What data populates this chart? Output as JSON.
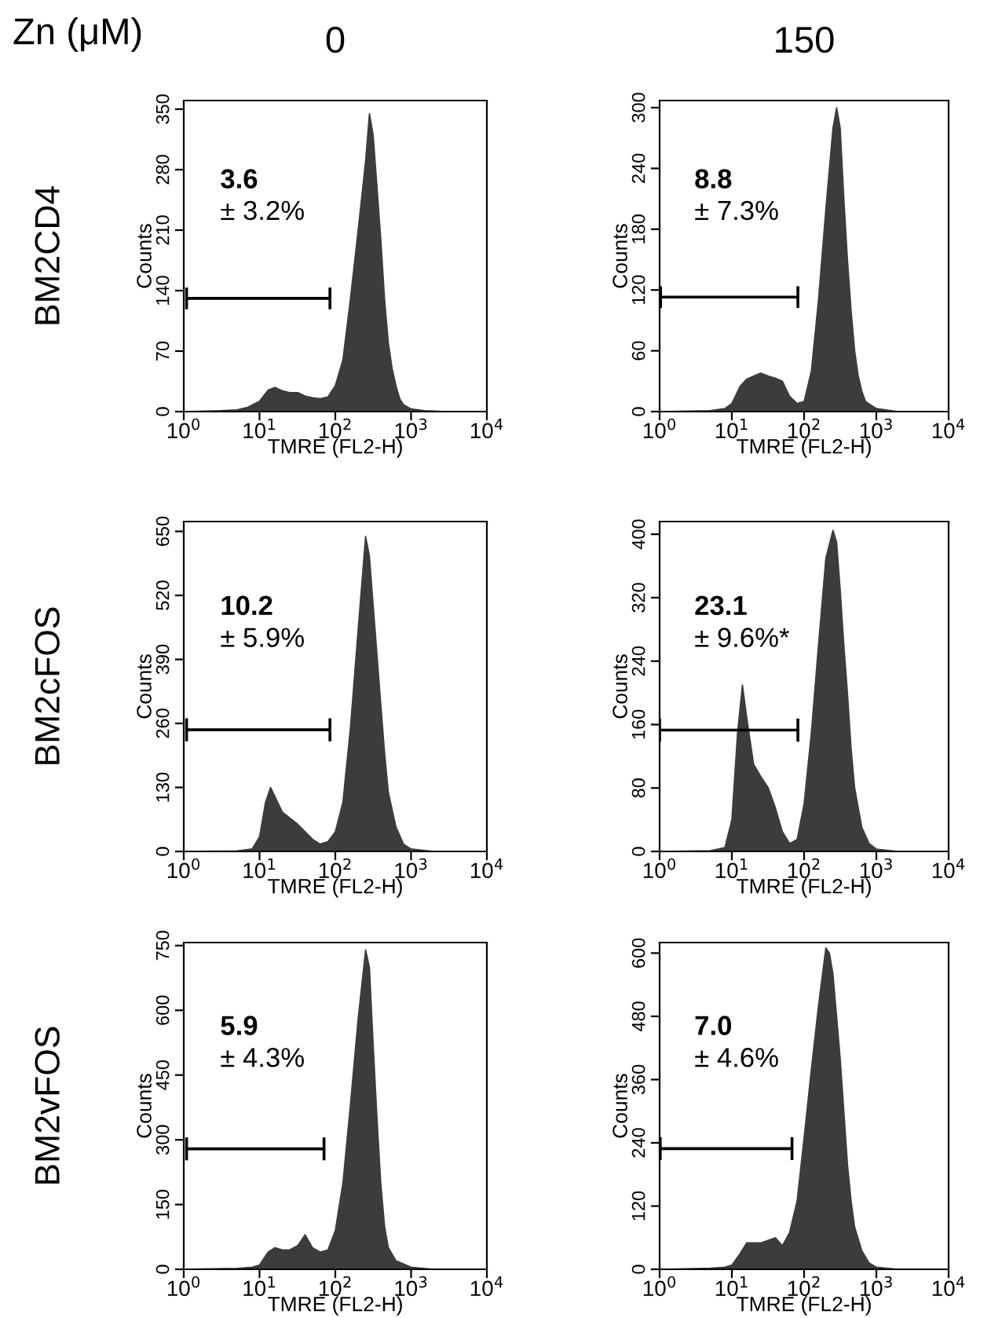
{
  "chart_data": [
    {
      "type": "area",
      "title": "0",
      "xlabel": "TMRE (FL2-H)",
      "ylabel": "Counts",
      "log": "x",
      "xlim": [
        1,
        10000
      ],
      "ylim": [
        0,
        360
      ],
      "yticks": [
        0,
        70,
        140,
        210,
        280,
        350
      ],
      "xticks": [
        {
          "value": 1,
          "label": "10$^{0}$"
        },
        {
          "value": 10,
          "label": "10$^{1}$"
        },
        {
          "value": 100,
          "label": "10$^{2}$"
        },
        {
          "value": 1000,
          "label": "10$^{3}$"
        },
        {
          "value": 10000,
          "label": "10$^{4}$"
        }
      ],
      "annotations": [
        "3.6",
        "± 3.2%",
        "BM2CD4",
        "Zn (μM)"
      ],
      "grid": false,
      "legend": false,
      "series": [
        {
          "color": "#3c3c3c",
          "x": [
            1,
            3,
            5,
            7,
            10,
            13,
            16,
            20,
            25,
            32,
            40,
            50,
            63,
            80,
            100,
            126,
            158,
            200,
            251,
            282,
            316,
            355,
            398,
            447,
            501,
            562,
            631,
            708,
            794,
            1000,
            1500,
            3000,
            10000
          ],
          "values": [
            0,
            1,
            2,
            5,
            12,
            25,
            28,
            24,
            22,
            22,
            18,
            16,
            15,
            17,
            30,
            60,
            130,
            210,
            290,
            345,
            320,
            260,
            200,
            130,
            80,
            50,
            30,
            15,
            8,
            3,
            1,
            0,
            0
          ]
        },
        {
          "type": "line",
          "color": "#000000",
          "x": [
            1.09,
            85
          ],
          "values": [
            131,
            131
          ]
        }
      ]
    },
    {
      "type": "area",
      "title": "150",
      "xlabel": "TMRE (FL2-H)",
      "ylabel": "Counts",
      "log": "x",
      "xlim": [
        1,
        10000
      ],
      "ylim": [
        0,
        307
      ],
      "yticks": [
        0,
        60,
        120,
        180,
        240,
        300
      ],
      "xticks": [
        {
          "value": 1,
          "label": "10$^{0}$"
        },
        {
          "value": 10,
          "label": "10$^{1}$"
        },
        {
          "value": 100,
          "label": "10$^{2}$"
        },
        {
          "value": 1000,
          "label": "10$^{3}$"
        },
        {
          "value": 10000,
          "label": "10$^{4}$"
        }
      ],
      "annotations": [
        "8.8",
        "± 7.3%"
      ],
      "grid": false,
      "legend": false,
      "series": [
        {
          "color": "#3c3c3c",
          "x": [
            1,
            5,
            8,
            10,
            13,
            16,
            20,
            25,
            32,
            40,
            50,
            63,
            80,
            100,
            126,
            158,
            200,
            251,
            282,
            316,
            355,
            398,
            447,
            501,
            562,
            631,
            708,
            1000,
            2000,
            10000
          ],
          "values": [
            0,
            1,
            3,
            8,
            25,
            32,
            35,
            38,
            35,
            33,
            30,
            15,
            8,
            10,
            40,
            110,
            200,
            280,
            300,
            280,
            210,
            150,
            100,
            60,
            35,
            20,
            10,
            3,
            0,
            0
          ]
        },
        {
          "type": "line",
          "color": "#000000",
          "x": [
            1.03,
            82
          ],
          "values": [
            113,
            113
          ]
        }
      ]
    },
    {
      "type": "area",
      "xlabel": "TMRE (FL2-H)",
      "ylabel": "Counts",
      "log": "x",
      "xlim": [
        1,
        10000
      ],
      "ylim": [
        0,
        670
      ],
      "yticks": [
        0,
        130,
        260,
        390,
        520,
        650
      ],
      "xticks": [
        {
          "value": 1,
          "label": "10$^{0}$"
        },
        {
          "value": 10,
          "label": "10$^{1}$"
        },
        {
          "value": 100,
          "label": "10$^{2}$"
        },
        {
          "value": 1000,
          "label": "10$^{3}$"
        },
        {
          "value": 10000,
          "label": "10$^{4}$"
        }
      ],
      "annotations": [
        "10.2",
        "± 5.9%",
        "BM2cFOS"
      ],
      "grid": false,
      "legend": false,
      "series": [
        {
          "color": "#3c3c3c",
          "x": [
            1,
            5,
            8,
            10,
            12,
            14,
            20,
            32,
            50,
            63,
            80,
            100,
            126,
            158,
            200,
            251,
            282,
            316,
            355,
            398,
            447,
            501,
            631,
            794,
            1000,
            2000,
            10000
          ],
          "values": [
            0,
            1,
            5,
            30,
            100,
            130,
            80,
            55,
            25,
            15,
            20,
            40,
            100,
            250,
            450,
            640,
            600,
            500,
            400,
            300,
            200,
            120,
            50,
            15,
            5,
            0,
            0
          ]
        },
        {
          "type": "line",
          "color": "#000000",
          "x": [
            1.09,
            85
          ],
          "values": [
            247,
            247
          ]
        }
      ]
    },
    {
      "type": "area",
      "xlabel": "TMRE (FL2-H)",
      "ylabel": "Counts",
      "log": "x",
      "xlim": [
        1,
        10000
      ],
      "ylim": [
        0,
        416
      ],
      "yticks": [
        0,
        80,
        160,
        240,
        320,
        400
      ],
      "xticks": [
        {
          "value": 1,
          "label": "10$^{0}$"
        },
        {
          "value": 10,
          "label": "10$^{1}$"
        },
        {
          "value": 100,
          "label": "10$^{2}$"
        },
        {
          "value": 1000,
          "label": "10$^{3}$"
        },
        {
          "value": 10000,
          "label": "10$^{4}$"
        }
      ],
      "annotations": [
        "23.1",
        "± 9.6%*"
      ],
      "grid": false,
      "legend": false,
      "series": [
        {
          "color": "#3c3c3c",
          "x": [
            1,
            5,
            8,
            10,
            12,
            14,
            16,
            20,
            25,
            32,
            40,
            50,
            63,
            80,
            100,
            126,
            158,
            200,
            251,
            282,
            316,
            355,
            398,
            447,
            501,
            631,
            794,
            1000,
            2000,
            10000
          ],
          "values": [
            0,
            1,
            5,
            40,
            150,
            210,
            170,
            110,
            95,
            80,
            55,
            25,
            10,
            15,
            60,
            150,
            260,
            370,
            405,
            390,
            330,
            260,
            200,
            130,
            80,
            30,
            10,
            3,
            0,
            0
          ]
        },
        {
          "type": "line",
          "color": "#000000",
          "x": [
            1.0,
            82
          ],
          "values": [
            153,
            153
          ]
        }
      ]
    },
    {
      "type": "area",
      "xlabel": "TMRE (FL2-H)",
      "ylabel": "Counts",
      "log": "x",
      "xlim": [
        1,
        10000
      ],
      "ylim": [
        0,
        757
      ],
      "yticks": [
        0,
        150,
        300,
        450,
        600,
        750
      ],
      "xticks": [
        {
          "value": 1,
          "label": "10$^{0}$"
        },
        {
          "value": 10,
          "label": "10$^{1}$"
        },
        {
          "value": 100,
          "label": "10$^{2}$"
        },
        {
          "value": 1000,
          "label": "10$^{3}$"
        },
        {
          "value": 10000,
          "label": "10$^{4}$"
        }
      ],
      "annotations": [
        "5.9",
        "± 4.3%",
        "BM2vFOS"
      ],
      "grid": false,
      "legend": false,
      "series": [
        {
          "color": "#3c3c3c",
          "x": [
            1,
            5,
            8,
            10,
            13,
            16,
            20,
            25,
            32,
            40,
            50,
            63,
            80,
            100,
            126,
            158,
            200,
            251,
            282,
            316,
            355,
            398,
            447,
            501,
            631,
            1000,
            2000,
            10000
          ],
          "values": [
            0,
            2,
            5,
            10,
            40,
            50,
            45,
            45,
            55,
            80,
            50,
            40,
            45,
            90,
            200,
            380,
            580,
            740,
            700,
            520,
            350,
            200,
            100,
            50,
            20,
            5,
            0,
            0
          ]
        },
        {
          "type": "line",
          "color": "#000000",
          "x": [
            1.09,
            71
          ],
          "values": [
            279,
            279
          ]
        }
      ]
    },
    {
      "type": "area",
      "xlabel": "TMRE (FL2-H)",
      "ylabel": "Counts",
      "log": "x",
      "xlim": [
        1,
        10000
      ],
      "ylim": [
        0,
        620
      ],
      "yticks": [
        0,
        120,
        240,
        360,
        480,
        600
      ],
      "xticks": [
        {
          "value": 1,
          "label": "10$^{0}$"
        },
        {
          "value": 10,
          "label": "10$^{1}$"
        },
        {
          "value": 100,
          "label": "10$^{2}$"
        },
        {
          "value": 1000,
          "label": "10$^{3}$"
        },
        {
          "value": 10000,
          "label": "10$^{4}$"
        }
      ],
      "annotations": [
        "7.0",
        "± 4.6%"
      ],
      "grid": false,
      "legend": false,
      "series": [
        {
          "color": "#3c3c3c",
          "x": [
            1,
            5,
            8,
            10,
            13,
            16,
            20,
            25,
            32,
            40,
            50,
            63,
            80,
            100,
            126,
            158,
            200,
            224,
            251,
            316,
            355,
            398,
            447,
            501,
            631,
            794,
            1000,
            2000,
            10000
          ],
          "values": [
            0,
            2,
            4,
            8,
            30,
            50,
            50,
            50,
            55,
            60,
            45,
            70,
            130,
            250,
            380,
            500,
            610,
            600,
            560,
            400,
            300,
            200,
            130,
            80,
            35,
            12,
            4,
            0,
            0
          ]
        },
        {
          "type": "line",
          "color": "#000000",
          "x": [
            1.02,
            68
          ],
          "values": [
            229,
            229
          ]
        }
      ]
    }
  ]
}
